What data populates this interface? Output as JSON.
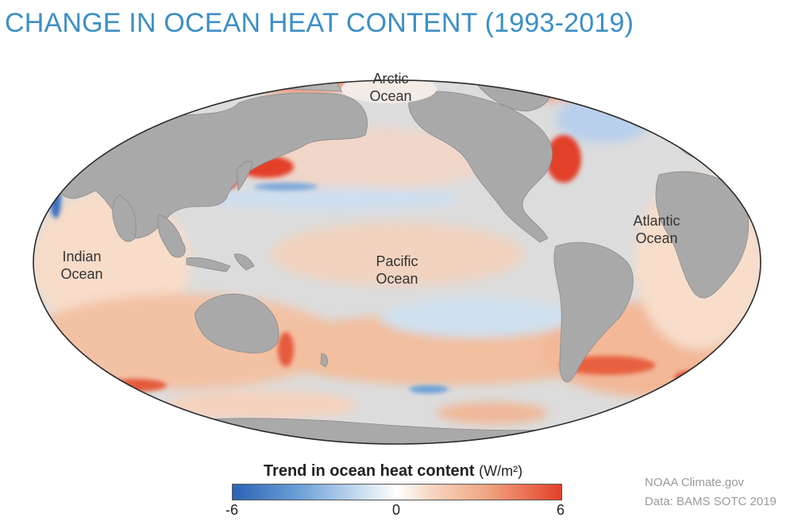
{
  "title": "CHANGE IN OCEAN HEAT CONTENT (1993-2019)",
  "map": {
    "ocean_labels": [
      {
        "id": "arctic",
        "text": "Arctic\nOcean"
      },
      {
        "id": "atlantic",
        "text": "Atlantic\nOcean"
      },
      {
        "id": "indian",
        "text": "Indian\nOcean"
      },
      {
        "id": "pacific",
        "text": "Pacific\nOcean"
      }
    ],
    "colors": {
      "land": "#a9a9a9",
      "ocean_neutral": "#d9d9d9",
      "warming": "#e3402a",
      "cooling": "#2b63b3"
    }
  },
  "legend": {
    "title_bold": "Trend in ocean heat content",
    "unit": "(W/m²)",
    "min": "-6",
    "mid": "0",
    "max": "6"
  },
  "credit": {
    "line1": "NOAA Climate.gov",
    "line2": "Data: BAMS SOTC 2019"
  }
}
